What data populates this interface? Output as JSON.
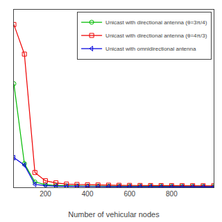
{
  "chart_data": {
    "type": "line",
    "xlabel": "Number of vehicular nodes",
    "x": [
      50,
      100,
      150,
      200,
      250,
      300,
      350,
      400,
      450,
      500,
      550,
      600,
      650,
      700,
      750,
      800,
      850,
      900,
      950,
      1000
    ],
    "series": [
      {
        "name": "Unicast with directional antenna (θ=3π/4)",
        "color": "#00bb00",
        "marker": "circle",
        "values": [
          35.0,
          8.0,
          1.8,
          0.9,
          0.62,
          0.5,
          0.44,
          0.4,
          0.37,
          0.35,
          0.33,
          0.32,
          0.31,
          0.3,
          0.29,
          0.29,
          0.28,
          0.28,
          0.27,
          0.27
        ]
      },
      {
        "name": "Unicast with directional antenna (θ=4π/3)",
        "color": "#ee0000",
        "marker": "square",
        "values": [
          55.0,
          45.0,
          5.0,
          2.2,
          1.5,
          1.1,
          0.95,
          0.85,
          0.78,
          0.72,
          0.68,
          0.65,
          0.62,
          0.6,
          0.58,
          0.56,
          0.55,
          0.54,
          0.53,
          0.52
        ]
      },
      {
        "name": "Unicast with omnidirectional antenna",
        "color": "#0000dd",
        "marker": "triangle-left",
        "values": [
          10.0,
          7.5,
          1.0,
          0.55,
          0.4,
          0.32,
          0.28,
          0.25,
          0.23,
          0.22,
          0.21,
          0.2,
          0.19,
          0.19,
          0.18,
          0.18,
          0.17,
          0.17,
          0.17,
          0.16
        ]
      }
    ],
    "xlim": [
      50,
      1000
    ],
    "xticks": [
      200,
      400,
      600,
      800
    ],
    "ylim": [
      0,
      60
    ],
    "tick_labels": "x",
    "grid": false,
    "legend": "upper right"
  }
}
